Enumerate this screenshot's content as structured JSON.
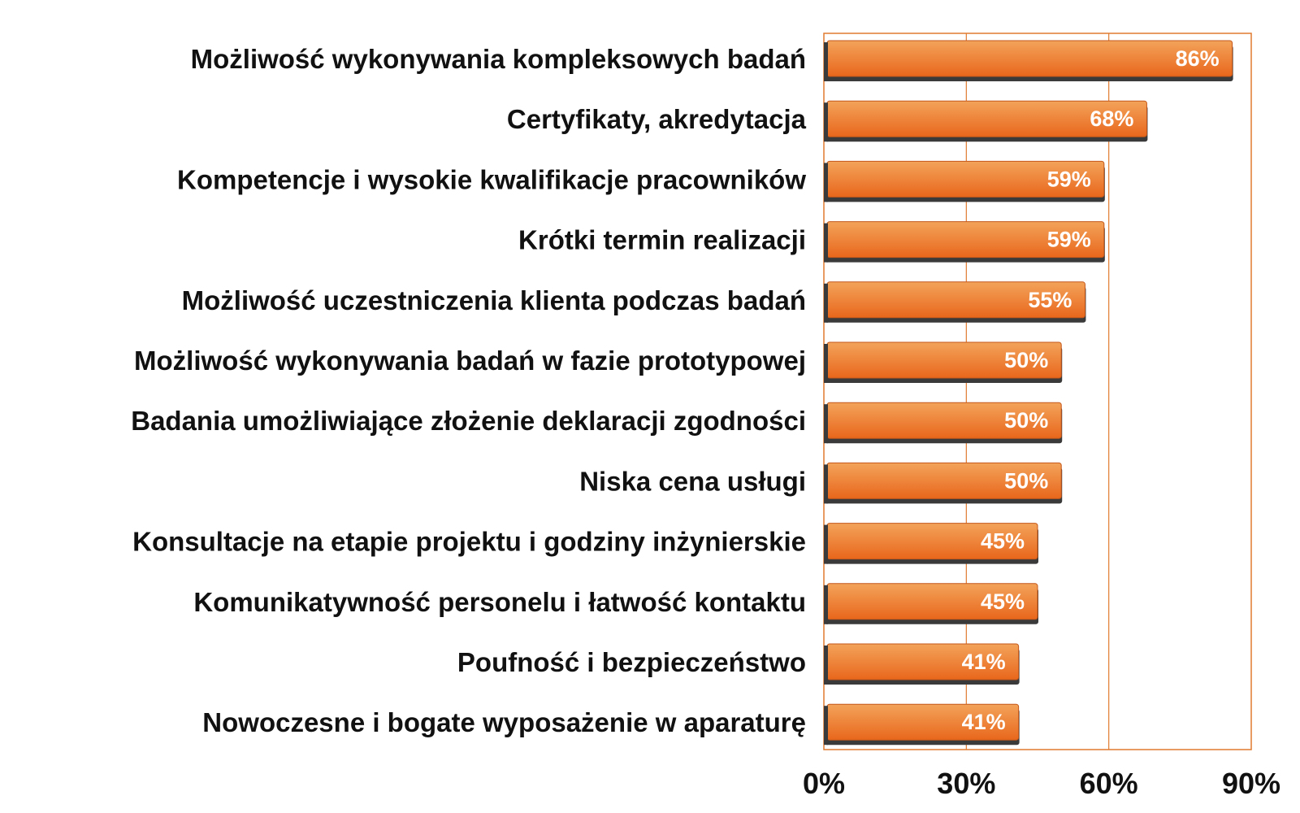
{
  "chart_data": {
    "type": "bar",
    "orientation": "horizontal",
    "title": "",
    "xlabel": "",
    "ylabel": "",
    "categories": [
      "Możliwość wykonywania kompleksowych badań",
      "Certyfikaty, akredytacja",
      "Kompetencje i wysokie kwalifikacje pracowników",
      "Krótki termin realizacji",
      "Możliwość uczestniczenia klienta podczas badań",
      "Możliwość wykonywania badań w fazie prototypowej",
      "Badania umożliwiające złożenie deklaracji zgodności",
      "Niska cena usługi",
      "Konsultacje na etapie projektu i godziny inżynierskie",
      "Komunikatywność personelu i łatwość kontaktu",
      "Poufność i bezpieczeństwo",
      "Nowoczesne i bogate wyposażenie w aparaturę"
    ],
    "values": [
      86,
      68,
      59,
      59,
      55,
      50,
      50,
      50,
      45,
      45,
      41,
      41
    ],
    "data_labels": [
      "86%",
      "68%",
      "59%",
      "59%",
      "55%",
      "50%",
      "50%",
      "50%",
      "45%",
      "45%",
      "41%",
      "41%"
    ],
    "xlim": [
      0,
      90
    ],
    "xticks": [
      0,
      30,
      60,
      90
    ],
    "xtick_labels": [
      "0%",
      "30%",
      "60%",
      "90%"
    ],
    "grid": "vertical",
    "legend": "none",
    "colors": {
      "bar_top": "#f3a35a",
      "bar_bottom": "#e8671c",
      "bar_shadow": "#3a3a3a",
      "frame": "#e07b30",
      "gridline": "#e07b30"
    }
  }
}
